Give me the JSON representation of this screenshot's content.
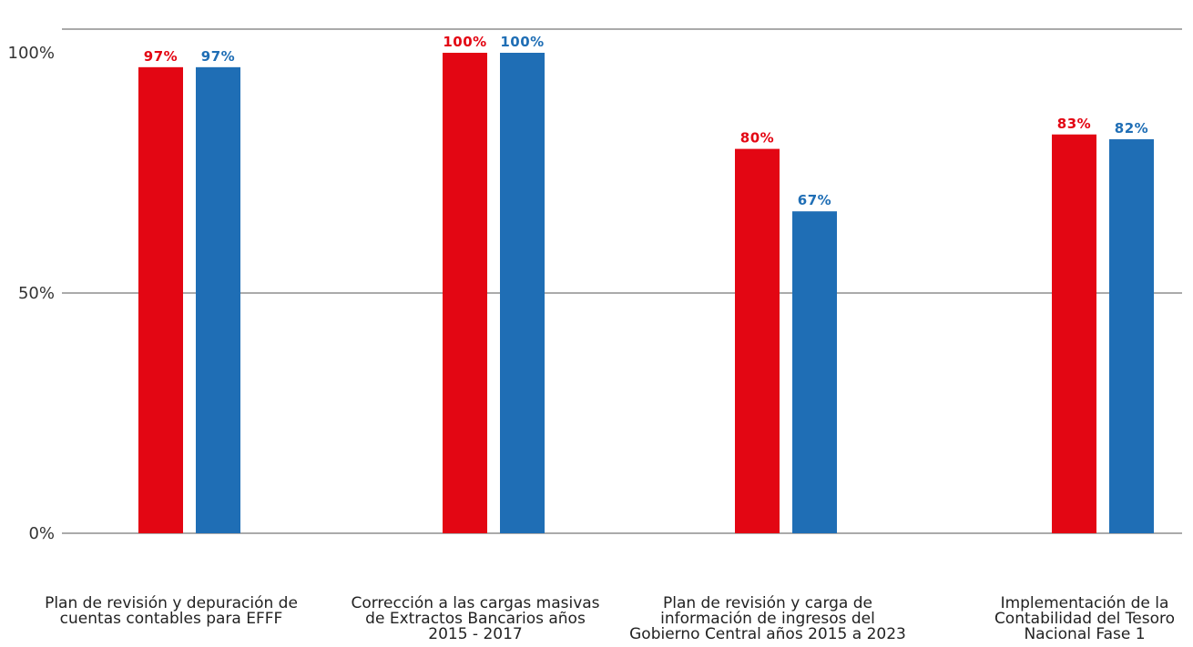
{
  "chart_data": {
    "type": "bar",
    "categories": [
      [
        "Plan de revisión y depuración de",
        "cuentas contables para EFFF"
      ],
      [
        "Corrección a las cargas masivas",
        "de Extractos Bancarios años",
        "2015 - 2017"
      ],
      [
        "Plan de revisión y carga de",
        "información de ingresos del",
        "Gobierno Central años 2015 a 2023"
      ],
      [
        "Implementación de la",
        "Contabilidad del Tesoro",
        "Nacional Fase 1"
      ]
    ],
    "series": [
      {
        "values": [
          97,
          100,
          80,
          83
        ],
        "labels": [
          "97%",
          "100%",
          "80%",
          "83%"
        ],
        "color": "#e30613"
      },
      {
        "values": [
          97,
          100,
          67,
          82
        ],
        "labels": [
          "97%",
          "100%",
          "67%",
          "82%"
        ],
        "color": "#1f6eb5"
      }
    ],
    "y_ticks": [
      {
        "value": 0,
        "label": "0%"
      },
      {
        "value": 50,
        "label": "50%"
      },
      {
        "value": 100,
        "label": "100%"
      }
    ],
    "ylim": [
      0,
      105
    ],
    "grid": true,
    "legend": "none"
  }
}
